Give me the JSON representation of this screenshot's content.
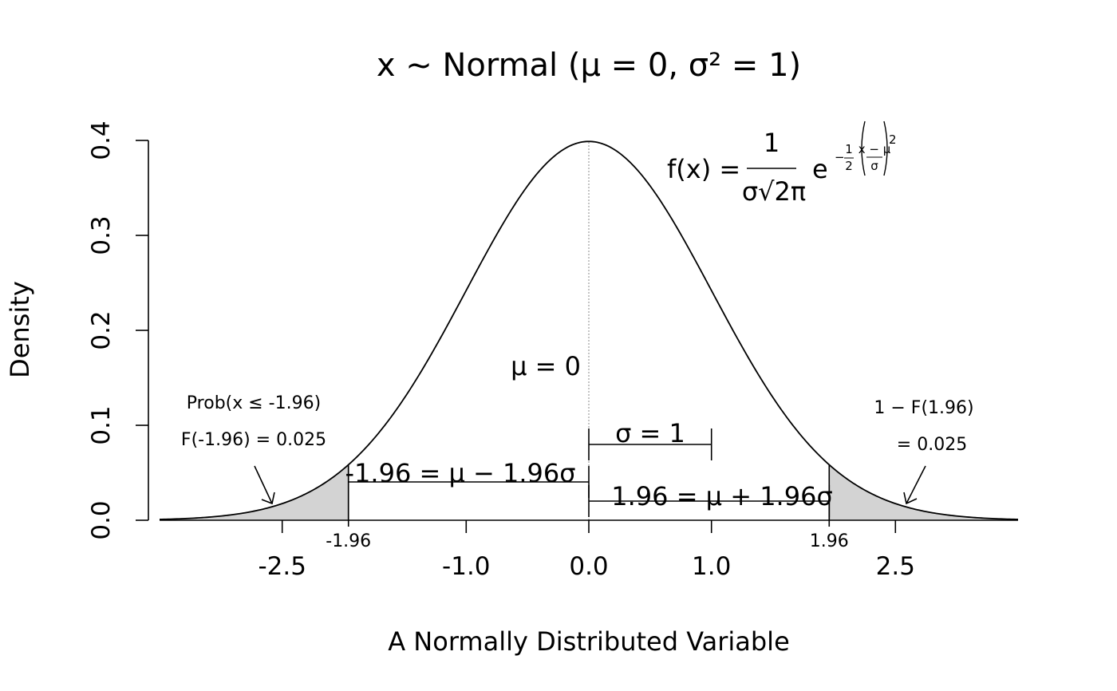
{
  "chart_data": {
    "type": "line",
    "title": "x ~ Normal (μ = 0, σ² = 1)",
    "xlabel": "A Normally Distributed Variable",
    "ylabel": "Density",
    "xlim": [
      -3.5,
      3.5
    ],
    "ylim": [
      0,
      0.4
    ],
    "x_ticks": [
      -2.5,
      -1.0,
      0.0,
      1.0,
      2.5
    ],
    "x_tick_labels": [
      "-2.5",
      "-1.0",
      "0.0",
      "1.0",
      "2.5"
    ],
    "x_special_ticks": [
      -1.96,
      1.96
    ],
    "x_special_tick_labels": [
      "-1.96",
      "1.96"
    ],
    "y_ticks": [
      0.0,
      0.1,
      0.2,
      0.3,
      0.4
    ],
    "y_tick_labels": [
      "0.0",
      "0.1",
      "0.2",
      "0.3",
      "0.4"
    ],
    "distribution": {
      "mean": 0,
      "sd": 1
    },
    "shaded_tails": [
      {
        "from": -3.5,
        "to": -1.96
      },
      {
        "from": 1.96,
        "to": 3.5
      }
    ],
    "grid": false,
    "annotations": {
      "formula_lhs": "f(x) =",
      "formula_num": "1",
      "formula_den": "σ√2π",
      "formula_e": "e",
      "formula_exp_sign": "−",
      "formula_exp_half": "1",
      "formula_exp_two": "2",
      "formula_exp_inner": "x − μ",
      "formula_exp_sigma": "σ",
      "formula_exp_power": "2",
      "mu_label": "μ = 0",
      "sigma_label": "σ = 1",
      "left_bracket_label": "-1.96 = μ − 1.96σ",
      "right_bracket_label": "1.96 = μ + 1.96σ",
      "left_tail_line1": "Prob(x ≤ -1.96)",
      "left_tail_line2": "F(-1.96) = 0.025",
      "right_tail_line1": "1 − F(1.96)",
      "right_tail_line2": "= 0.025"
    }
  }
}
